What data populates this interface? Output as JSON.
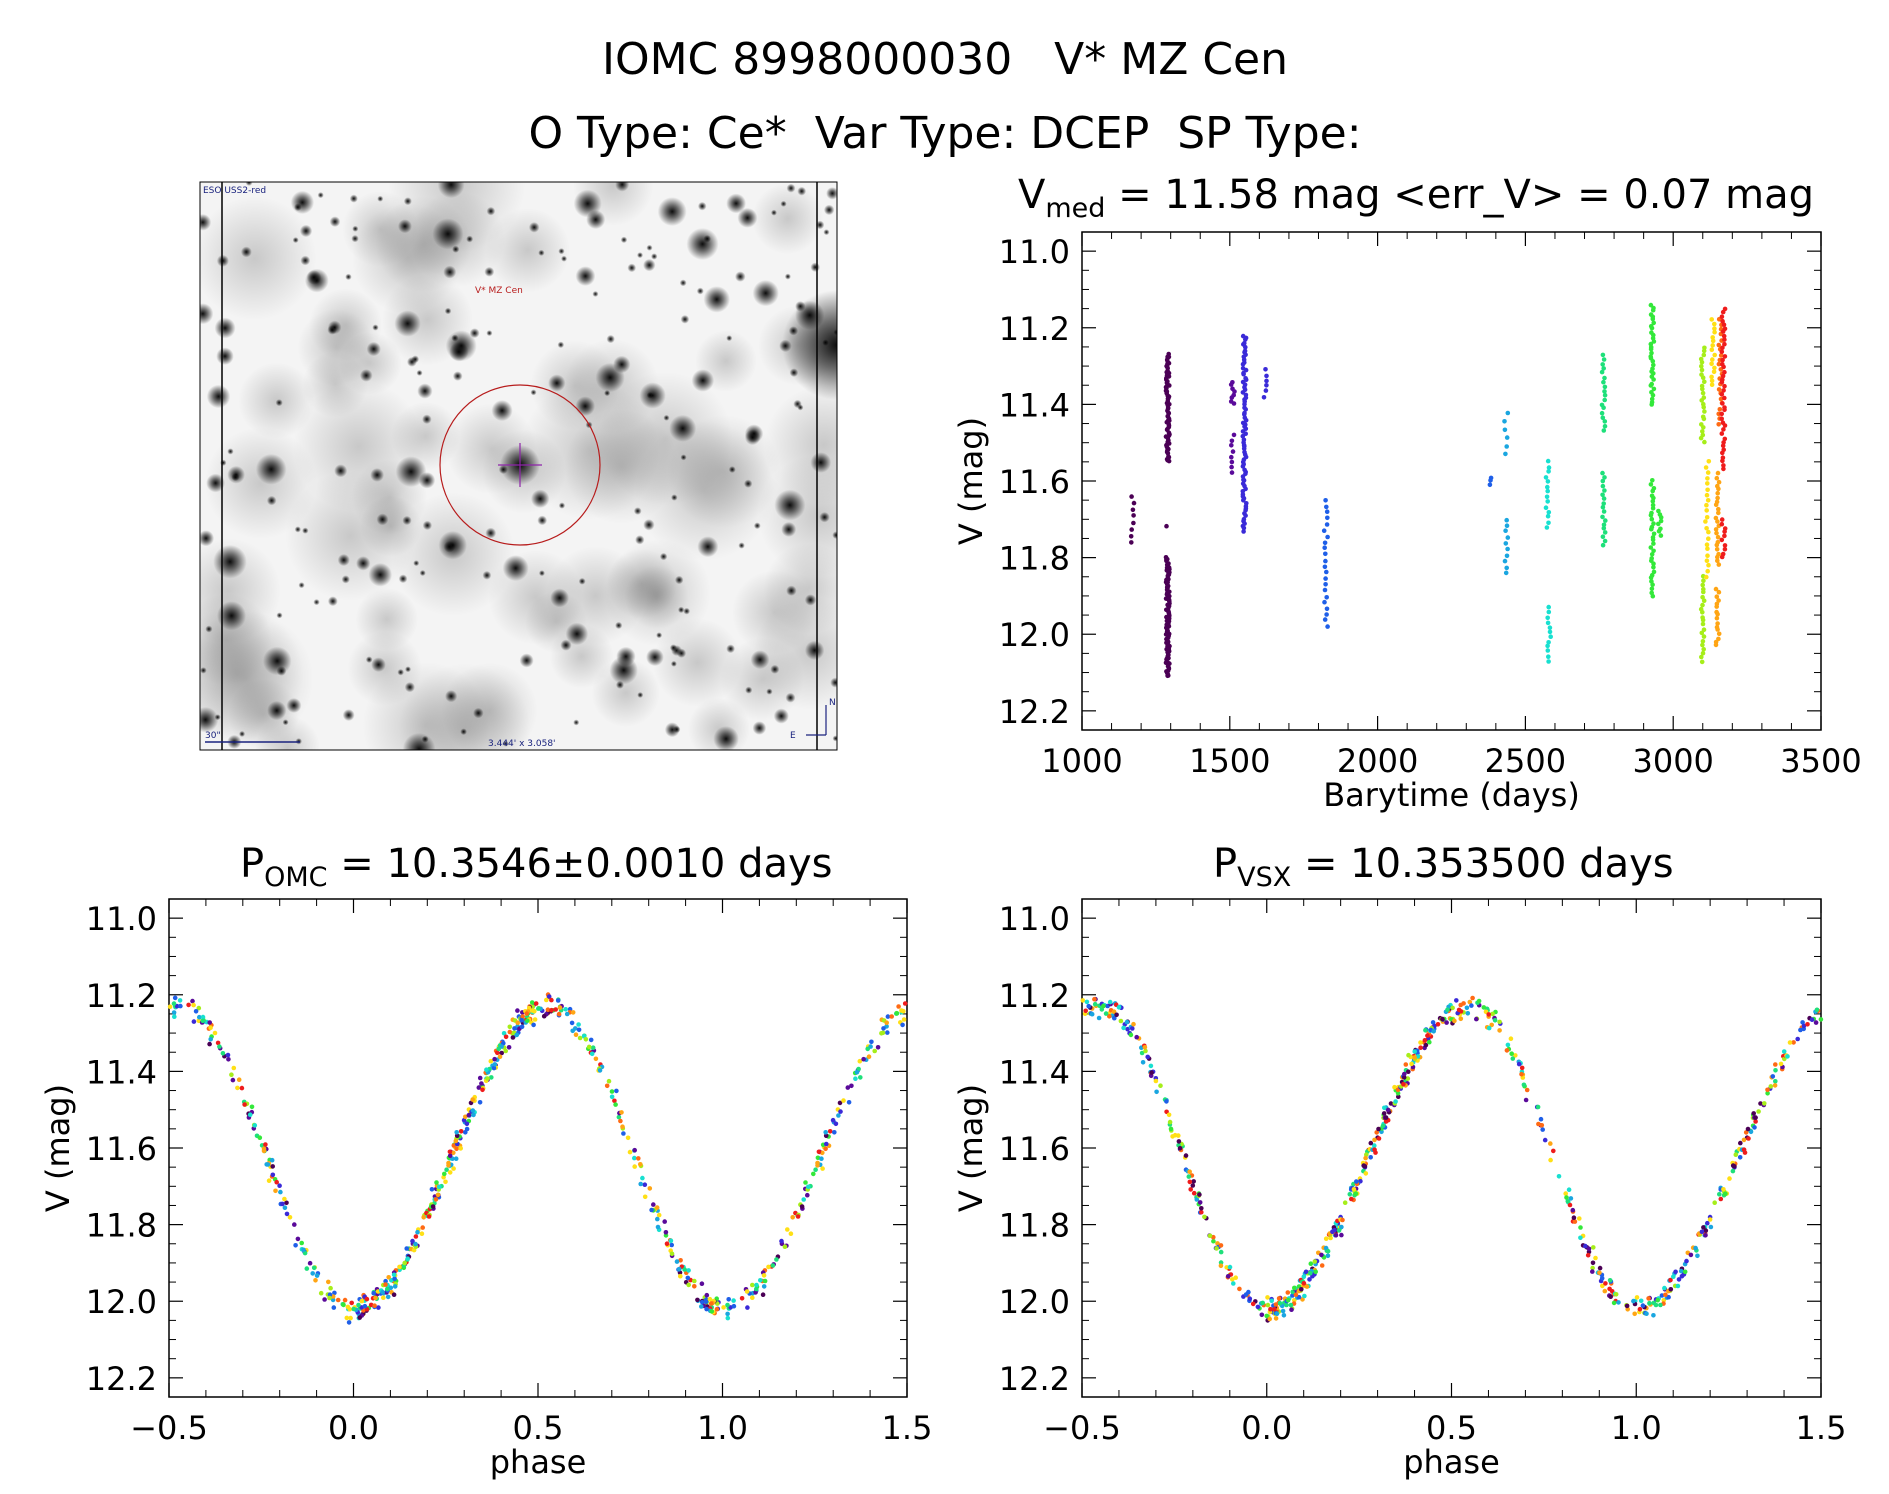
{
  "figure": {
    "title_line1": "IOMC 8998000030   V* MZ Cen",
    "title_line2": "O Type: Ce*  Var Type: DCEP  SP Type:"
  },
  "image_panel": {
    "survey_label": "ESO USS2-red",
    "target_label": "V* MZ Cen",
    "scale_label": "30\"",
    "fov_label": "3.444' x 3.058'",
    "north_label": "N",
    "east_label": "E"
  },
  "colors": {
    "palette": [
      "#4b0055",
      "#5a0a9a",
      "#3a2ad8",
      "#1f5fe8",
      "#1aa6e0",
      "#18e0d0",
      "#1ee07a",
      "#33e83a",
      "#a6ee1a",
      "#ffe015",
      "#ffa514",
      "#ff6a14",
      "#ef1c1c"
    ]
  },
  "chart_data": [
    {
      "id": "light_curve",
      "type": "scatter",
      "title_main": "V",
      "title_sub": "med",
      "title_rest": " = 11.58 mag <err_V> = 0.07 mag",
      "xlabel": "Barytime (days)",
      "ylabel": "V (mag)",
      "xlim": [
        1000,
        3500
      ],
      "ylim": [
        12.25,
        10.95
      ],
      "xticks": [
        1000,
        1500,
        2000,
        2500,
        3000,
        3500
      ],
      "xtick_labels": [
        "1000",
        "1500",
        "2000",
        "2500",
        "3000",
        "3500"
      ],
      "yticks": [
        11.0,
        11.2,
        11.4,
        11.6,
        11.8,
        12.0,
        12.2
      ],
      "ytick_labels": [
        "11.0",
        "11.2",
        "11.4",
        "11.6",
        "11.8",
        "12.0",
        "12.2"
      ],
      "clusters": [
        {
          "x": 1170,
          "ymin": 11.64,
          "ymax": 11.76,
          "n": 8,
          "color": 0
        },
        {
          "x": 1290,
          "ymin": 11.27,
          "ymax": 11.55,
          "n": 70,
          "color": 0
        },
        {
          "x": 1290,
          "ymin": 11.8,
          "ymax": 12.11,
          "n": 90,
          "color": 0
        },
        {
          "x": 1290,
          "ymin": 11.71,
          "ymax": 11.73,
          "n": 1,
          "color": 0
        },
        {
          "x": 1510,
          "ymin": 11.34,
          "ymax": 11.4,
          "n": 8,
          "color": 1
        },
        {
          "x": 1510,
          "ymin": 11.48,
          "ymax": 11.58,
          "n": 8,
          "color": 1
        },
        {
          "x": 1550,
          "ymin": 11.22,
          "ymax": 11.73,
          "n": 80,
          "color": 2
        },
        {
          "x": 1620,
          "ymin": 11.31,
          "ymax": 11.38,
          "n": 6,
          "color": 2
        },
        {
          "x": 1825,
          "ymin": 11.65,
          "ymax": 11.98,
          "n": 22,
          "color": 3
        },
        {
          "x": 2380,
          "ymin": 11.59,
          "ymax": 11.61,
          "n": 3,
          "color": 3
        },
        {
          "x": 2435,
          "ymin": 11.42,
          "ymax": 11.53,
          "n": 6,
          "color": 4
        },
        {
          "x": 2435,
          "ymin": 11.7,
          "ymax": 11.84,
          "n": 10,
          "color": 4
        },
        {
          "x": 2575,
          "ymin": 11.55,
          "ymax": 11.72,
          "n": 14,
          "color": 5
        },
        {
          "x": 2580,
          "ymin": 11.93,
          "ymax": 12.07,
          "n": 12,
          "color": 5
        },
        {
          "x": 2765,
          "ymin": 11.27,
          "ymax": 11.47,
          "n": 18,
          "color": 6
        },
        {
          "x": 2765,
          "ymin": 11.58,
          "ymax": 11.77,
          "n": 18,
          "color": 6
        },
        {
          "x": 2930,
          "ymin": 11.14,
          "ymax": 11.4,
          "n": 34,
          "color": 7
        },
        {
          "x": 2930,
          "ymin": 11.6,
          "ymax": 11.9,
          "n": 34,
          "color": 7
        },
        {
          "x": 2955,
          "ymin": 11.68,
          "ymax": 11.74,
          "n": 8,
          "color": 7
        },
        {
          "x": 3100,
          "ymin": 11.25,
          "ymax": 11.5,
          "n": 26,
          "color": 8
        },
        {
          "x": 3100,
          "ymin": 11.85,
          "ymax": 12.07,
          "n": 22,
          "color": 8
        },
        {
          "x": 3115,
          "ymin": 11.55,
          "ymax": 11.85,
          "n": 22,
          "color": 9
        },
        {
          "x": 3135,
          "ymin": 11.18,
          "ymax": 11.35,
          "n": 16,
          "color": 9
        },
        {
          "x": 3150,
          "ymin": 11.58,
          "ymax": 11.82,
          "n": 24,
          "color": 10
        },
        {
          "x": 3150,
          "ymin": 11.88,
          "ymax": 12.03,
          "n": 16,
          "color": 10
        },
        {
          "x": 3160,
          "ymin": 11.18,
          "ymax": 11.45,
          "n": 22,
          "color": 11
        },
        {
          "x": 3170,
          "ymin": 11.15,
          "ymax": 11.57,
          "n": 42,
          "color": 12
        },
        {
          "x": 3170,
          "ymin": 11.7,
          "ymax": 11.8,
          "n": 10,
          "color": 12
        }
      ]
    },
    {
      "id": "phase_omc",
      "type": "scatter",
      "title_main": "P",
      "title_sub": "OMC",
      "title_rest": " = 10.3546±0.0010 days",
      "xlabel": "phase",
      "ylabel": "V (mag)",
      "xlim": [
        -0.5,
        1.5
      ],
      "ylim": [
        12.25,
        10.95
      ],
      "xticks": [
        -0.5,
        0.0,
        0.5,
        1.0,
        1.5
      ],
      "xtick_labels": [
        "−0.5",
        "0.0",
        "0.5",
        "1.0",
        "1.5"
      ],
      "yticks": [
        11.0,
        11.2,
        11.4,
        11.6,
        11.8,
        12.0,
        12.2
      ],
      "ytick_labels": [
        "11.0",
        "11.2",
        "11.4",
        "11.6",
        "11.8",
        "12.0",
        "12.2"
      ],
      "curve": {
        "max_phase": 0.53,
        "min_phase": 0.0,
        "bright_mag": 11.23,
        "faint_mag": 12.02,
        "n_points": 560,
        "scatter": 0.06
      }
    },
    {
      "id": "phase_vsx",
      "type": "scatter",
      "title_main": "P",
      "title_sub": "VSX",
      "title_rest": " = 10.353500 days",
      "xlabel": "phase",
      "ylabel": "V (mag)",
      "xlim": [
        -0.5,
        1.5
      ],
      "ylim": [
        12.25,
        10.95
      ],
      "xticks": [
        -0.5,
        0.0,
        0.5,
        1.0,
        1.5
      ],
      "xtick_labels": [
        "−0.5",
        "0.0",
        "0.5",
        "1.0",
        "1.5"
      ],
      "yticks": [
        11.0,
        11.2,
        11.4,
        11.6,
        11.8,
        12.0,
        12.2
      ],
      "ytick_labels": [
        "11.0",
        "11.2",
        "11.4",
        "11.6",
        "11.8",
        "12.0",
        "12.2"
      ],
      "curve": {
        "max_phase": 0.55,
        "min_phase": 0.0,
        "bright_mag": 11.23,
        "faint_mag": 12.02,
        "n_points": 560,
        "scatter": 0.06
      }
    }
  ]
}
